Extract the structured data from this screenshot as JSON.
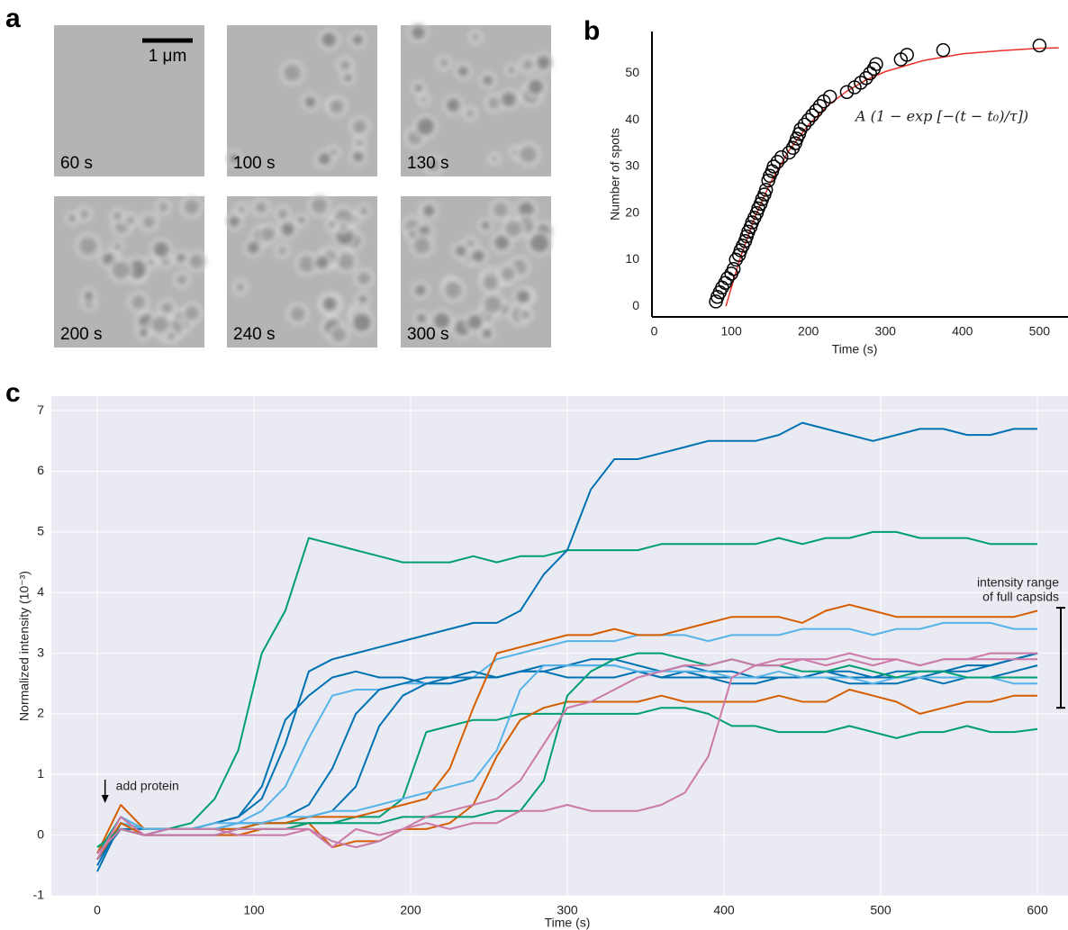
{
  "panel_labels": [
    "a",
    "b",
    "c"
  ],
  "images": {
    "scale_bar": "1 μm",
    "labels": [
      "60 s",
      "100 s",
      "130 s",
      "200 s",
      "240 s",
      "300 s"
    ]
  },
  "chart_data": [
    {
      "type": "scatter",
      "xlabel": "Time (s)",
      "ylabel": "Number of spots",
      "annotation": "A (1 − exp [−(t − t₀)/τ])",
      "xlim": [
        -3,
        537
      ],
      "ylim": [
        -2.3,
        59
      ],
      "xticks": [
        0,
        100,
        200,
        300,
        400,
        500
      ],
      "yticks": [
        0,
        10,
        20,
        30,
        40,
        50
      ],
      "color": "#000000",
      "x": [
        80,
        82,
        85,
        88,
        92,
        95,
        100,
        103,
        106,
        110,
        112,
        115,
        118,
        120,
        122,
        125,
        127,
        130,
        133,
        135,
        138,
        140,
        143,
        145,
        148,
        150,
        153,
        155,
        160,
        165,
        175,
        180,
        183,
        185,
        188,
        190,
        195,
        200,
        205,
        210,
        215,
        220,
        228,
        250,
        260,
        268,
        275,
        280,
        285,
        288,
        320,
        328,
        375,
        500
      ],
      "values": [
        1,
        2,
        3,
        4,
        5,
        6,
        7,
        8,
        10,
        11,
        12,
        13,
        14,
        15,
        16,
        17,
        18,
        19,
        20,
        21,
        22,
        23,
        24,
        25,
        27,
        28,
        29,
        30,
        31,
        32,
        33,
        34,
        35,
        36,
        37,
        38,
        39,
        40,
        41,
        42,
        43,
        44,
        45,
        46,
        47,
        48,
        49,
        50,
        51,
        52,
        53,
        54,
        55,
        56
      ],
      "fit": {
        "color": "#e8312a",
        "x": [
          93,
          110,
          130,
          150,
          175,
          200,
          225,
          250,
          275,
          300,
          350,
          400,
          450,
          500,
          525
        ],
        "values": [
          0,
          9.6,
          18.9,
          26.3,
          33.5,
          38.9,
          43.1,
          46.2,
          48.6,
          50.4,
          52.8,
          54.2,
          54.9,
          55.4,
          55.5
        ]
      }
    },
    {
      "type": "line",
      "xlabel": "Time (s)",
      "ylabel": "Normalized intensity (10⁻³)",
      "xlim": [
        -29.3,
        619.5
      ],
      "ylim": [
        -1,
        7.24
      ],
      "xticks": [
        0,
        100,
        200,
        300,
        400,
        500,
        600
      ],
      "yticks": [
        -1,
        0,
        1,
        2,
        3,
        4,
        5,
        6,
        7
      ],
      "grid": true,
      "arrow": {
        "text": "add protein",
        "x": 5
      },
      "range_bar": {
        "text": [
          "intensity range",
          "of full capsids"
        ],
        "values": [
          2.1,
          3.75
        ]
      },
      "x": [
        0,
        15,
        30,
        45,
        60,
        75,
        90,
        105,
        120,
        135,
        150,
        165,
        180,
        195,
        210,
        225,
        240,
        255,
        270,
        285,
        300,
        315,
        330,
        345,
        360,
        375,
        390,
        405,
        420,
        435,
        450,
        465,
        480,
        495,
        510,
        525,
        540,
        555,
        570,
        585,
        600
      ],
      "series": [
        {
          "color": "#009e73",
          "values": [
            -0.3,
            0.3,
            0.1,
            0.1,
            0.2,
            0.6,
            1.4,
            3.0,
            3.7,
            4.9,
            4.8,
            4.7,
            4.6,
            4.5,
            4.5,
            4.5,
            4.6,
            4.5,
            4.6,
            4.6,
            4.7,
            4.7,
            4.7,
            4.7,
            4.8,
            4.8,
            4.8,
            4.8,
            4.8,
            4.9,
            4.8,
            4.9,
            4.9,
            5.0,
            5.0,
            4.9,
            4.9,
            4.9,
            4.8,
            4.8,
            4.8
          ]
        },
        {
          "color": "#0072b2",
          "values": [
            -0.5,
            0.2,
            0.1,
            0.1,
            0.1,
            0.2,
            0.3,
            0.6,
            1.5,
            2.7,
            2.9,
            3.0,
            3.1,
            3.2,
            3.3,
            3.4,
            3.5,
            3.5,
            3.7,
            4.3,
            4.7,
            5.7,
            6.2,
            6.2,
            6.3,
            6.4,
            6.5,
            6.5,
            6.5,
            6.6,
            6.8,
            6.7,
            6.6,
            6.5,
            6.6,
            6.7,
            6.7,
            6.6,
            6.6,
            6.7,
            6.7
          ]
        },
        {
          "color": "#0072b2",
          "values": [
            -0.6,
            0.2,
            0.1,
            0.1,
            0.1,
            0.2,
            0.3,
            0.8,
            1.9,
            2.3,
            2.6,
            2.7,
            2.6,
            2.6,
            2.5,
            2.6,
            2.6,
            2.6,
            2.7,
            2.8,
            2.8,
            2.9,
            2.9,
            2.8,
            2.7,
            2.8,
            2.7,
            2.7,
            2.6,
            2.6,
            2.6,
            2.7,
            2.7,
            2.6,
            2.6,
            2.6,
            2.7,
            2.8,
            2.8,
            2.9,
            3.0
          ]
        },
        {
          "color": "#56b4e9",
          "values": [
            -0.4,
            0.2,
            0.1,
            0.1,
            0.1,
            0.2,
            0.2,
            0.4,
            0.8,
            1.6,
            2.3,
            2.4,
            2.4,
            2.5,
            2.5,
            2.5,
            2.6,
            2.9,
            3.0,
            3.1,
            3.2,
            3.2,
            3.2,
            3.3,
            3.3,
            3.3,
            3.2,
            3.3,
            3.3,
            3.3,
            3.4,
            3.4,
            3.4,
            3.3,
            3.4,
            3.4,
            3.5,
            3.5,
            3.5,
            3.4,
            3.4
          ]
        },
        {
          "color": "#0072b2",
          "values": [
            -0.4,
            0.1,
            0.1,
            0.1,
            0.1,
            0.1,
            0.2,
            0.2,
            0.3,
            0.5,
            1.1,
            2.0,
            2.4,
            2.5,
            2.6,
            2.6,
            2.7,
            2.6,
            2.7,
            2.7,
            2.6,
            2.6,
            2.6,
            2.7,
            2.6,
            2.7,
            2.6,
            2.6,
            2.6,
            2.6,
            2.6,
            2.7,
            2.6,
            2.6,
            2.7,
            2.7,
            2.7,
            2.7,
            2.8,
            2.9,
            3.0
          ]
        },
        {
          "color": "#0072b2",
          "values": [
            -0.4,
            0.1,
            0.0,
            0.1,
            0.1,
            0.1,
            0.1,
            0.2,
            0.2,
            0.3,
            0.4,
            0.8,
            1.8,
            2.3,
            2.5,
            2.5,
            2.6,
            2.6,
            2.7,
            2.7,
            2.8,
            2.8,
            2.8,
            2.7,
            2.6,
            2.6,
            2.6,
            2.5,
            2.5,
            2.6,
            2.6,
            2.6,
            2.5,
            2.5,
            2.5,
            2.6,
            2.5,
            2.6,
            2.6,
            2.7,
            2.8
          ]
        },
        {
          "color": "#009e73",
          "values": [
            -0.3,
            0.1,
            0.0,
            0.1,
            0.1,
            0.1,
            0.1,
            0.2,
            0.2,
            0.2,
            0.2,
            0.3,
            0.3,
            0.6,
            1.7,
            1.8,
            1.9,
            1.9,
            2.0,
            2.0,
            2.0,
            2.0,
            2.0,
            2.0,
            2.1,
            2.1,
            2.0,
            1.8,
            1.8,
            1.7,
            1.7,
            1.7,
            1.8,
            1.7,
            1.6,
            1.7,
            1.7,
            1.8,
            1.7,
            1.7,
            1.75
          ]
        },
        {
          "color": "#d55e00",
          "values": [
            -0.3,
            0.5,
            0.1,
            0.1,
            0.1,
            0.1,
            0.1,
            0.2,
            0.2,
            0.3,
            0.3,
            0.3,
            0.4,
            0.5,
            0.6,
            1.1,
            2.1,
            3.0,
            3.1,
            3.2,
            3.3,
            3.3,
            3.4,
            3.3,
            3.3,
            3.4,
            3.5,
            3.6,
            3.6,
            3.6,
            3.5,
            3.7,
            3.8,
            3.7,
            3.6,
            3.6,
            3.6,
            3.6,
            3.6,
            3.6,
            3.7
          ]
        },
        {
          "color": "#56b4e9",
          "values": [
            -0.4,
            0.3,
            0.1,
            0.1,
            0.1,
            0.1,
            0.2,
            0.2,
            0.3,
            0.3,
            0.4,
            0.4,
            0.5,
            0.6,
            0.7,
            0.8,
            0.9,
            1.4,
            2.4,
            2.8,
            2.8,
            2.8,
            2.8,
            2.7,
            2.7,
            2.7,
            2.7,
            2.6,
            2.6,
            2.7,
            2.6,
            2.6,
            2.6,
            2.5,
            2.6,
            2.6,
            2.6,
            2.6,
            2.6,
            2.5,
            2.5
          ]
        },
        {
          "color": "#d55e00",
          "values": [
            -0.4,
            0.2,
            0.0,
            0.0,
            0.0,
            0.0,
            0.0,
            0.1,
            0.1,
            0.2,
            -0.2,
            -0.1,
            -0.1,
            0.1,
            0.1,
            0.2,
            0.5,
            1.3,
            1.9,
            2.1,
            2.2,
            2.2,
            2.2,
            2.2,
            2.3,
            2.2,
            2.2,
            2.2,
            2.2,
            2.3,
            2.2,
            2.2,
            2.4,
            2.3,
            2.2,
            2.0,
            2.1,
            2.2,
            2.2,
            2.3,
            2.3
          ]
        },
        {
          "color": "#009e73",
          "values": [
            -0.2,
            0.1,
            0.0,
            0.0,
            0.0,
            0.0,
            0.1,
            0.1,
            0.1,
            0.2,
            0.2,
            0.2,
            0.2,
            0.3,
            0.3,
            0.3,
            0.3,
            0.4,
            0.4,
            0.9,
            2.3,
            2.7,
            2.9,
            3.0,
            3.0,
            2.9,
            2.8,
            2.9,
            2.8,
            2.8,
            2.7,
            2.7,
            2.8,
            2.7,
            2.6,
            2.7,
            2.7,
            2.6,
            2.6,
            2.6,
            2.6
          ]
        },
        {
          "color": "#cc79a7",
          "values": [
            -0.3,
            0.1,
            0.0,
            0.1,
            0.1,
            0.1,
            0.0,
            0.0,
            0.0,
            0.1,
            -0.2,
            0.1,
            0.0,
            0.1,
            0.2,
            0.1,
            0.2,
            0.2,
            0.4,
            0.4,
            0.5,
            0.4,
            0.4,
            0.4,
            0.5,
            0.7,
            1.3,
            2.6,
            2.8,
            2.8,
            2.9,
            2.8,
            2.9,
            2.8,
            2.9,
            2.8,
            2.9,
            2.9,
            3.0,
            3.0,
            3.0
          ]
        },
        {
          "color": "#cc79a7",
          "values": [
            -0.4,
            0.3,
            0.0,
            0.0,
            0.0,
            0.0,
            0.1,
            0.1,
            0.1,
            0.1,
            -0.1,
            -0.2,
            -0.1,
            0.1,
            0.3,
            0.4,
            0.5,
            0.6,
            0.9,
            1.5,
            2.1,
            2.2,
            2.4,
            2.6,
            2.7,
            2.8,
            2.8,
            2.9,
            2.8,
            2.9,
            2.9,
            2.9,
            3.0,
            2.9,
            2.9,
            2.8,
            2.9,
            2.9,
            2.9,
            2.9,
            2.9
          ]
        }
      ]
    }
  ]
}
